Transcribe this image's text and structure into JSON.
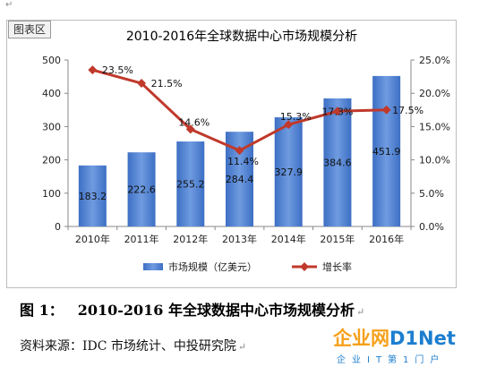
{
  "top_mark": "↵",
  "chart_tab_label": "图表区",
  "chart_data": {
    "type": "bar",
    "title": "2010-2016年全球数据中心市场规模分析",
    "categories": [
      "2010年",
      "2011年",
      "2012年",
      "2013年",
      "2014年",
      "2015年",
      "2016年"
    ],
    "series": [
      {
        "name": "市场规模（亿美元）",
        "type": "bar",
        "axis": "left",
        "values": [
          183.2,
          222.6,
          255.2,
          284.4,
          327.9,
          384.6,
          451.9
        ],
        "labels": [
          "183.2",
          "222.6",
          "255.2",
          "284.4",
          "327.9",
          "384.6",
          "451.9"
        ]
      },
      {
        "name": "增长率",
        "type": "line",
        "axis": "right",
        "values": [
          23.5,
          21.5,
          14.6,
          11.4,
          15.3,
          17.3,
          17.5
        ],
        "labels": [
          "23.5%",
          "21.5%",
          "14.6%",
          "11.4%",
          "15.3%",
          "17.3%",
          "17.5%"
        ]
      }
    ],
    "y_left": {
      "min": 0,
      "max": 500,
      "ticks": [
        "0",
        "100",
        "200",
        "300",
        "400",
        "500"
      ]
    },
    "y_right": {
      "min": 0,
      "max": 25,
      "ticks": [
        "0.0%",
        "5.0%",
        "10.0%",
        "15.0%",
        "20.0%",
        "25.0%"
      ]
    },
    "grid": false,
    "legend_position": "bottom",
    "colors": {
      "bar": "#3d6fc4",
      "bar_light": "#6f9be0",
      "line": "#c0392b"
    }
  },
  "caption": {
    "number": "图 1：",
    "text": "2010-2016 年全球数据中心市场规模分析",
    "mark": "↵"
  },
  "source": {
    "text": "资料来源：IDC 市场统计、中投研究院",
    "mark": "↵"
  },
  "logo": {
    "part_a": "企业网",
    "part_b": "D1Net",
    "tagline": "企业IT第1门户"
  }
}
